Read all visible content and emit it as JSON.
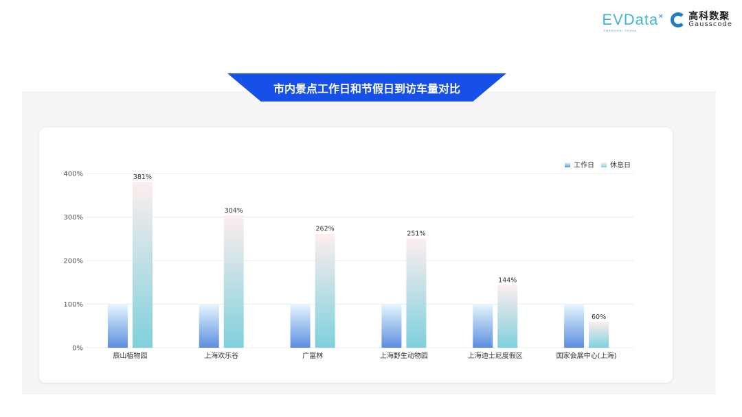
{
  "logos": {
    "evdata": "EVData",
    "evdata_sub": "SHANGHAI CHINA",
    "gauss_cn": "高科数聚",
    "gauss_en": "Gausscode"
  },
  "title": "市内景点工作日和节假日到访车量对比",
  "chart_data": {
    "type": "bar",
    "title": "市内景点工作日和节假日到访车量对比",
    "categories": [
      "辰山植物园",
      "上海欢乐谷",
      "广富林",
      "上海野生动物园",
      "上海迪士尼度假区",
      "国家会展中心(上海)"
    ],
    "series": [
      {
        "name": "工作日",
        "values": [
          100,
          100,
          100,
          100,
          100,
          100
        ],
        "colors": [
          "#e6f6fd",
          "#5b8ee0"
        ]
      },
      {
        "name": "休息日",
        "values": [
          381,
          304,
          262,
          251,
          144,
          60
        ],
        "colors": [
          "#fdeeee",
          "#7fd0dc"
        ],
        "data_labels": [
          "381%",
          "304%",
          "262%",
          "251%",
          "144%",
          "60%"
        ]
      }
    ],
    "yticks": [
      "0%",
      "100%",
      "200%",
      "300%",
      "400%"
    ],
    "ylim": [
      0,
      400
    ],
    "grid": true,
    "legend": "top-right"
  }
}
